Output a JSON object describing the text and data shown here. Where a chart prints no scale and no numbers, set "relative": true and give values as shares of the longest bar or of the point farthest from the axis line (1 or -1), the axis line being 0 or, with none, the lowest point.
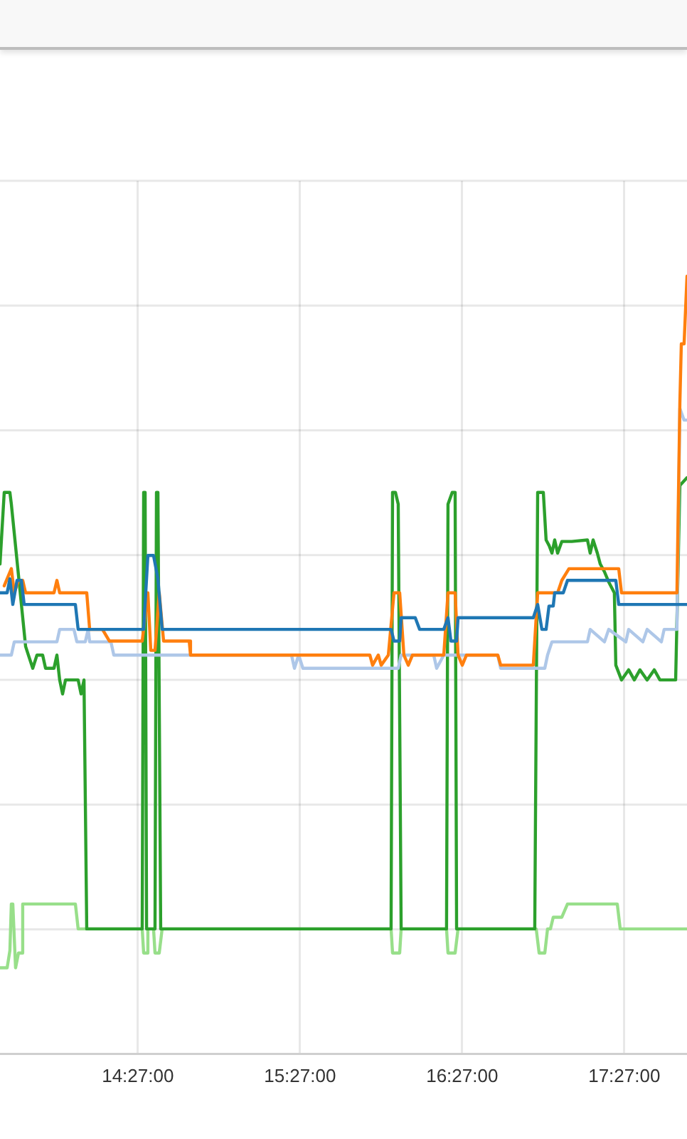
{
  "chart_data": {
    "type": "line",
    "relative": true,
    "grid": true,
    "legend": false,
    "marker": "none",
    "line_style": "solid",
    "xlim": [
      13.6,
      17.837
    ],
    "xticks": [
      {
        "value": 14.45,
        "label": "14:27:00"
      },
      {
        "value": 15.45,
        "label": "15:27:00"
      },
      {
        "value": 16.45,
        "label": "16:27:00"
      },
      {
        "value": 17.45,
        "label": "17:27:00"
      }
    ],
    "series": [
      {
        "color": "#98df8a",
        "x": [
          13.6,
          13.644,
          13.661,
          13.67,
          13.679,
          13.696,
          13.714,
          13.732,
          13.74,
          14.065,
          14.082,
          14.477,
          14.486,
          14.504,
          14.512,
          14.547,
          14.556,
          14.582,
          14.6,
          16.012,
          16.021,
          16.065,
          16.074,
          16.354,
          16.363,
          16.407,
          16.425,
          16.907,
          16.925,
          16.96,
          16.977,
          16.995,
          17.012,
          17.065,
          17.1,
          17.407,
          17.425,
          17.837
        ],
        "values": [
          0.111,
          0.111,
          0.133,
          0.193,
          0.193,
          0.111,
          0.13,
          0.13,
          0.193,
          0.193,
          0.161,
          0.161,
          0.13,
          0.13,
          0.161,
          0.161,
          0.13,
          0.13,
          0.161,
          0.161,
          0.13,
          0.13,
          0.161,
          0.161,
          0.13,
          0.13,
          0.161,
          0.161,
          0.13,
          0.13,
          0.161,
          0.161,
          0.176,
          0.176,
          0.193,
          0.193,
          0.161,
          0.161
        ]
      },
      {
        "color": "#2ca02c",
        "x": [
          13.6,
          13.626,
          13.661,
          13.67,
          13.758,
          13.775,
          13.802,
          13.828,
          13.863,
          13.881,
          13.933,
          13.951,
          13.968,
          13.986,
          14.004,
          14.082,
          14.1,
          14.118,
          14.135,
          14.477,
          14.486,
          14.495,
          14.504,
          14.556,
          14.565,
          14.574,
          14.591,
          16.012,
          16.021,
          16.039,
          16.056,
          16.074,
          16.354,
          16.363,
          16.389,
          16.407,
          16.416,
          16.898,
          16.916,
          16.951,
          16.968,
          16.986,
          17.004,
          17.021,
          17.039,
          17.065,
          17.126,
          17.223,
          17.24,
          17.258,
          17.284,
          17.302,
          17.328,
          17.354,
          17.389,
          17.398,
          17.433,
          17.477,
          17.512,
          17.547,
          17.591,
          17.635,
          17.67,
          17.767,
          17.793,
          17.837
        ],
        "values": [
          0.63,
          0.722,
          0.722,
          0.707,
          0.524,
          0.513,
          0.496,
          0.513,
          0.513,
          0.496,
          0.496,
          0.513,
          0.481,
          0.463,
          0.481,
          0.481,
          0.463,
          0.481,
          0.161,
          0.161,
          0.722,
          0.722,
          0.161,
          0.161,
          0.722,
          0.722,
          0.161,
          0.161,
          0.722,
          0.722,
          0.707,
          0.161,
          0.161,
          0.707,
          0.722,
          0.722,
          0.161,
          0.161,
          0.722,
          0.722,
          0.661,
          0.654,
          0.644,
          0.661,
          0.644,
          0.659,
          0.659,
          0.661,
          0.644,
          0.661,
          0.644,
          0.63,
          0.62,
          0.607,
          0.593,
          0.5,
          0.481,
          0.494,
          0.481,
          0.494,
          0.481,
          0.494,
          0.481,
          0.481,
          0.731,
          0.741
        ]
      },
      {
        "color": "#aec7e8",
        "x": [
          13.6,
          13.67,
          13.688,
          13.951,
          13.968,
          14.056,
          14.074,
          14.126,
          14.144,
          14.153,
          14.284,
          14.302,
          15.398,
          15.416,
          15.442,
          15.468,
          16.056,
          16.074,
          16.275,
          16.293,
          16.337,
          16.67,
          16.688,
          16.96,
          16.977,
          17.004,
          17.223,
          17.24,
          17.328,
          17.354,
          17.46,
          17.477,
          17.565,
          17.591,
          17.679,
          17.696,
          17.775,
          17.793,
          17.819,
          17.837
        ],
        "values": [
          0.513,
          0.513,
          0.53,
          0.53,
          0.546,
          0.546,
          0.53,
          0.53,
          0.546,
          0.53,
          0.53,
          0.513,
          0.513,
          0.496,
          0.513,
          0.496,
          0.496,
          0.513,
          0.513,
          0.496,
          0.513,
          0.513,
          0.496,
          0.496,
          0.513,
          0.53,
          0.53,
          0.546,
          0.53,
          0.546,
          0.53,
          0.546,
          0.53,
          0.546,
          0.53,
          0.546,
          0.546,
          0.83,
          0.815,
          0.815
        ]
      },
      {
        "color": "#ff7f0e",
        "x": [
          13.626,
          13.67,
          13.688,
          13.714,
          13.74,
          13.758,
          13.933,
          13.951,
          13.968,
          14.135,
          14.153,
          14.232,
          14.275,
          14.477,
          14.512,
          14.53,
          14.556,
          14.582,
          14.609,
          14.767,
          14.775,
          15.881,
          15.898,
          15.933,
          15.951,
          15.995,
          16.03,
          16.065,
          16.091,
          16.118,
          16.144,
          16.337,
          16.363,
          16.407,
          16.425,
          16.451,
          16.477,
          16.67,
          16.688,
          16.889,
          16.916,
          17.039,
          17.065,
          17.109,
          17.416,
          17.433,
          17.775,
          17.793,
          17.802,
          17.819,
          17.837
        ],
        "values": [
          0.602,
          0.624,
          0.593,
          0.609,
          0.609,
          0.593,
          0.593,
          0.609,
          0.593,
          0.593,
          0.546,
          0.546,
          0.531,
          0.531,
          0.593,
          0.519,
          0.519,
          0.593,
          0.531,
          0.531,
          0.513,
          0.513,
          0.5,
          0.513,
          0.5,
          0.513,
          0.593,
          0.593,
          0.513,
          0.5,
          0.513,
          0.513,
          0.593,
          0.593,
          0.513,
          0.5,
          0.513,
          0.513,
          0.5,
          0.5,
          0.593,
          0.593,
          0.609,
          0.624,
          0.624,
          0.593,
          0.593,
          0.837,
          0.913,
          0.913,
          1
        ]
      },
      {
        "color": "#1f77b4",
        "x": [
          13.6,
          13.644,
          13.661,
          13.679,
          13.705,
          13.732,
          13.749,
          14.065,
          14.082,
          14.486,
          14.512,
          14.547,
          14.574,
          14.6,
          16.012,
          16.03,
          16.065,
          16.074,
          16.161,
          16.188,
          16.337,
          16.363,
          16.381,
          16.416,
          16.425,
          16.889,
          16.916,
          16.942,
          16.968,
          16.986,
          17.012,
          17.021,
          17.074,
          17.1,
          17.398,
          17.416,
          17.837
        ],
        "values": [
          0.593,
          0.593,
          0.611,
          0.578,
          0.609,
          0.609,
          0.578,
          0.578,
          0.546,
          0.546,
          0.641,
          0.641,
          0.611,
          0.546,
          0.546,
          0.531,
          0.531,
          0.561,
          0.561,
          0.546,
          0.546,
          0.561,
          0.531,
          0.531,
          0.561,
          0.561,
          0.578,
          0.546,
          0.546,
          0.576,
          0.576,
          0.593,
          0.593,
          0.609,
          0.609,
          0.578,
          0.578
        ]
      }
    ]
  }
}
